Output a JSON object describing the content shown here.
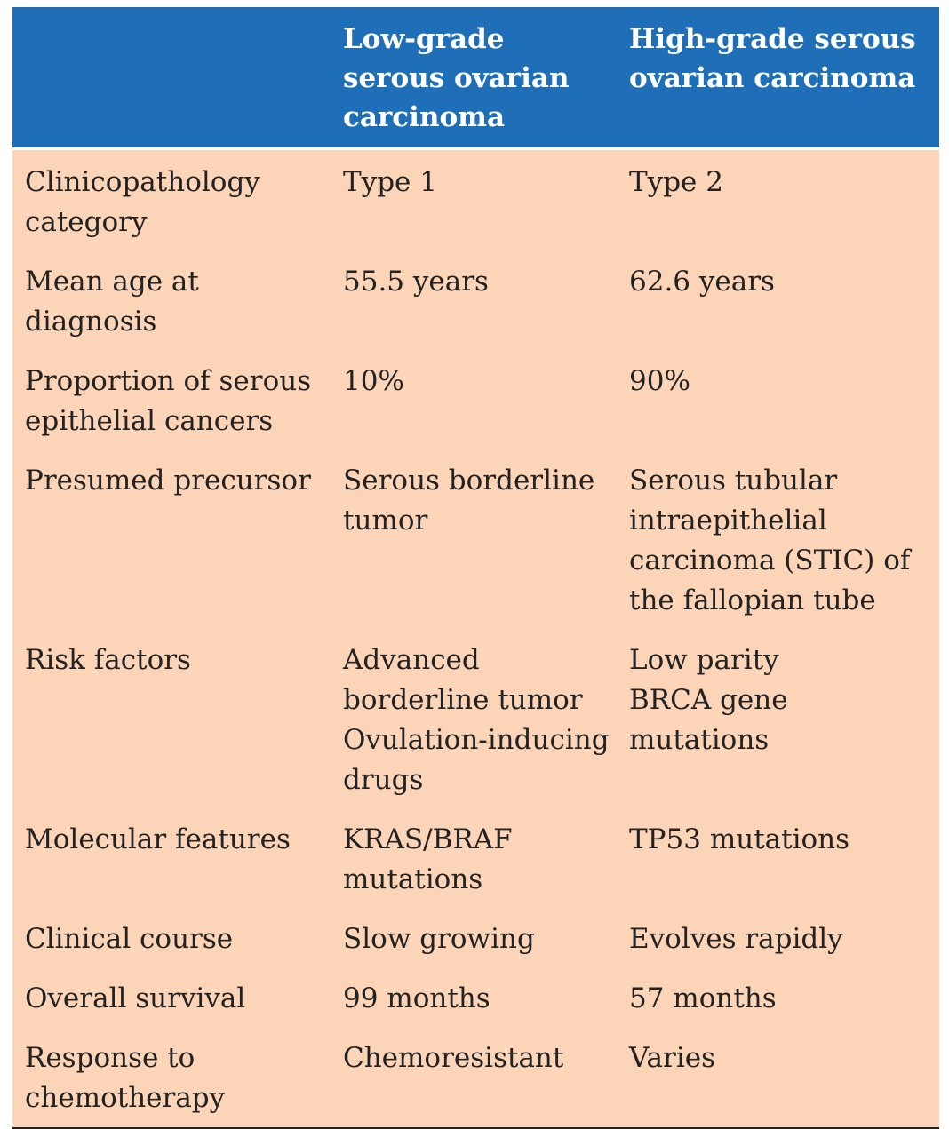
{
  "table": {
    "headers": [
      "",
      "Low-grade serous ovarian carcinoma",
      "High-grade serous ovarian carcinoma"
    ],
    "rows": [
      {
        "label": "Clinicopathology category",
        "low": [
          "Type 1"
        ],
        "high": [
          "Type 2"
        ]
      },
      {
        "label": "Mean age at diagnosis",
        "low": [
          "55.5 years"
        ],
        "high": [
          "62.6 years"
        ]
      },
      {
        "label": "Proportion of serous epithelial cancers",
        "low": [
          "10%"
        ],
        "high": [
          "90%"
        ]
      },
      {
        "label": "Presumed precursor",
        "low": [
          "Serous borderline tumor"
        ],
        "high": [
          "Serous tubular intraepithelial carcinoma (STIC) of the fallopian tube"
        ]
      },
      {
        "label": "Risk factors",
        "low": [
          "Advanced borderline tumor",
          "Ovulation-inducing drugs"
        ],
        "high": [
          "Low parity",
          "BRCA gene mutations"
        ]
      },
      {
        "label": "Molecular features",
        "low": [
          "KRAS/BRAF mutations"
        ],
        "high": [
          "TP53 mutations"
        ]
      },
      {
        "label": "Clinical course",
        "low": [
          "Slow growing"
        ],
        "high": [
          "Evolves rapidly"
        ]
      },
      {
        "label": "Overall survival",
        "low": [
          "99 months"
        ],
        "high": [
          "57 months"
        ]
      },
      {
        "label": "Response to chemotherapy",
        "low": [
          "Chemoresistant"
        ],
        "high": [
          "Varies"
        ]
      }
    ]
  },
  "colors": {
    "header_bg": "#1f6fb8",
    "body_bg": "#fcd4b8",
    "header_text": "#ffffff",
    "body_text": "#222222"
  }
}
